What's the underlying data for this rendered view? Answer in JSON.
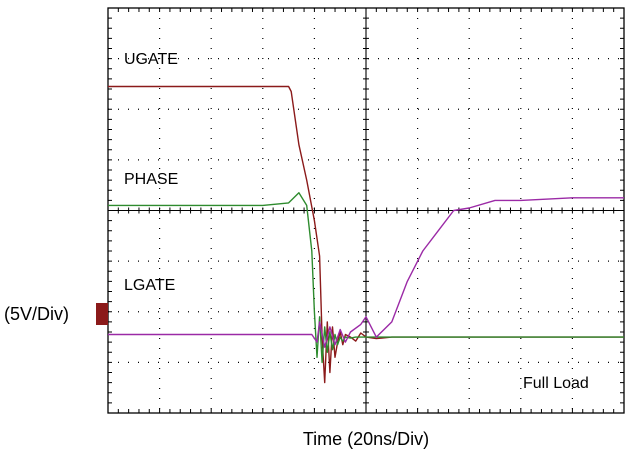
{
  "chart_data": {
    "type": "line",
    "title": "",
    "xlabel": "Time  (20ns/Div)",
    "ylabel": "(5V/Div)",
    "grid": true,
    "divisions": {
      "x": 10,
      "y": 8
    },
    "xlim": [
      0,
      10
    ],
    "ylim": [
      0,
      8
    ],
    "annotations": [
      {
        "name": "ugate_label",
        "text": "UGATE"
      },
      {
        "name": "phase_label",
        "text": "PHASE"
      },
      {
        "name": "lgate_label",
        "text": "LGATE"
      },
      {
        "name": "load_label",
        "text": "Full Load"
      }
    ],
    "series": [
      {
        "name": "UGATE",
        "color": "#8b1a1a",
        "x": [
          0,
          1,
          2,
          3,
          3.5,
          3.55,
          3.7,
          3.85,
          4.0,
          4.1,
          4.15,
          4.2,
          4.25,
          4.3,
          4.35,
          4.4,
          4.45,
          4.5,
          4.55,
          4.6,
          4.7,
          4.8,
          4.9,
          5.0,
          5.2,
          5.5,
          6,
          7,
          8,
          9,
          10
        ],
        "y": [
          6.45,
          6.45,
          6.45,
          6.45,
          6.45,
          6.35,
          5.3,
          4.6,
          3.8,
          3.1,
          1.5,
          0.6,
          1.8,
          0.8,
          1.7,
          1.1,
          1.4,
          1.6,
          1.35,
          1.55,
          1.5,
          1.42,
          1.58,
          1.5,
          1.47,
          1.5,
          1.5,
          1.5,
          1.5,
          1.5,
          1.5
        ]
      },
      {
        "name": "PHASE",
        "color": "#2e8b2e",
        "x": [
          0,
          1,
          2,
          3,
          3.5,
          3.7,
          3.85,
          3.95,
          4.0,
          4.05,
          4.1,
          4.15,
          4.2,
          4.25,
          4.3,
          4.35,
          4.4,
          4.45,
          4.5,
          4.55,
          4.6,
          4.7,
          4.8,
          5.0,
          5.5,
          6,
          7,
          8,
          9,
          10
        ],
        "y": [
          4.1,
          4.1,
          4.1,
          4.1,
          4.15,
          4.35,
          4.1,
          3.2,
          2.0,
          1.1,
          1.9,
          1.0,
          1.7,
          1.2,
          1.6,
          1.25,
          1.55,
          1.35,
          1.5,
          1.42,
          1.5,
          1.48,
          1.5,
          1.5,
          1.5,
          1.5,
          1.5,
          1.5,
          1.5,
          1.5
        ]
      },
      {
        "name": "LGATE",
        "color": "#9b2aa6",
        "x": [
          0,
          1,
          2,
          3,
          3.95,
          4.05,
          4.1,
          4.2,
          4.3,
          4.4,
          4.5,
          4.6,
          4.7,
          4.9,
          5.0,
          5.2,
          5.5,
          5.8,
          6.1,
          6.4,
          6.7,
          7.0,
          7.5,
          8,
          9,
          10
        ],
        "y": [
          1.55,
          1.55,
          1.55,
          1.55,
          1.55,
          1.4,
          1.8,
          1.3,
          1.7,
          1.35,
          1.65,
          1.4,
          1.6,
          1.75,
          1.9,
          1.5,
          1.8,
          2.6,
          3.2,
          3.6,
          4.0,
          4.05,
          4.2,
          4.2,
          4.25,
          4.25
        ]
      }
    ]
  },
  "scope": {
    "ground_marker_color": "#8b1a1a",
    "grid_color": "#000000"
  }
}
